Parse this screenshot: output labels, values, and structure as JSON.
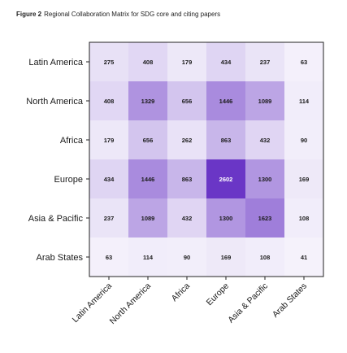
{
  "caption": {
    "label": "Figure 2",
    "text": "Regional Collaboration Matrix for SDG core and citing papers"
  },
  "chart_data": {
    "type": "heatmap",
    "title": "Regional Collaboration Matrix for SDG core and citing papers",
    "rows": [
      "Latin America",
      "North America",
      "Africa",
      "Europe",
      "Asia & Pacific",
      "Arab States"
    ],
    "cols": [
      "Latin America",
      "North America",
      "Africa",
      "Europe",
      "Asia & Pacific",
      "Arab States"
    ],
    "values": [
      [
        275,
        408,
        179,
        434,
        237,
        63
      ],
      [
        408,
        1329,
        656,
        1446,
        1089,
        114
      ],
      [
        179,
        656,
        262,
        863,
        432,
        90
      ],
      [
        434,
        1446,
        863,
        2602,
        1300,
        169
      ],
      [
        237,
        1089,
        432,
        1300,
        1623,
        108
      ],
      [
        63,
        114,
        90,
        169,
        108,
        41
      ]
    ],
    "color_min": "#f7f5fc",
    "color_max": "#6a36c6",
    "value_range": [
      0,
      2602
    ],
    "grid": false,
    "legend": "none"
  }
}
